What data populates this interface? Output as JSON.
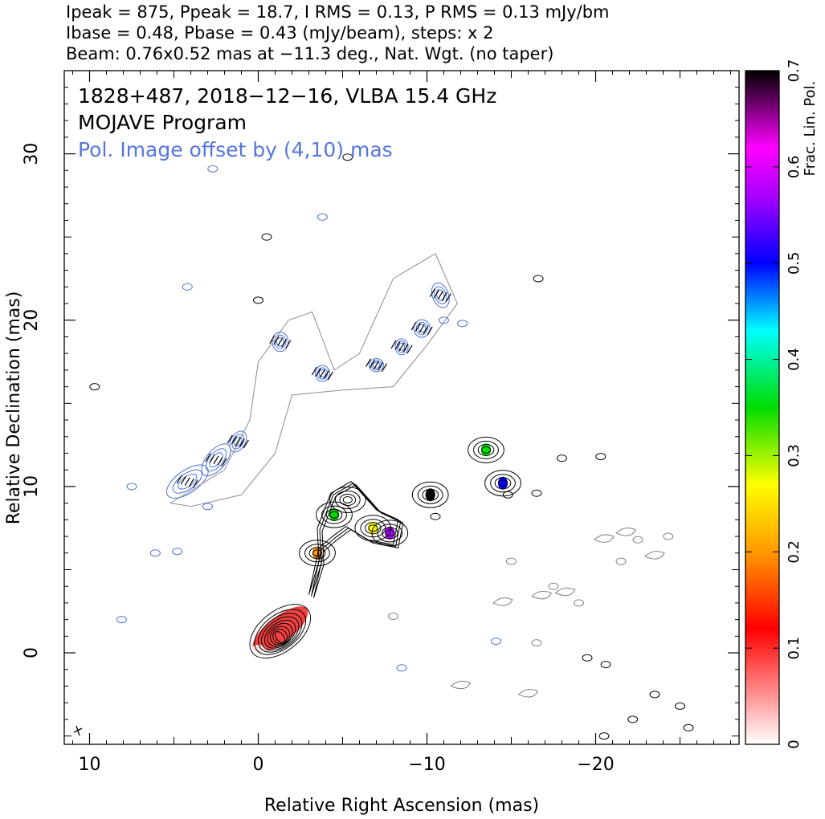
{
  "header": {
    "line1": "Ipeak = 875, Ppeak = 18.7, I RMS = 0.13, P RMS = 0.13 mJy/bm",
    "line2": "Ibase = 0.48, Pbase = 0.43 (mJy/beam), steps: x 2",
    "line3": "Beam: 0.76x0.52 mas at −11.3 deg., Nat. Wgt. (no taper)"
  },
  "annotations": {
    "source": "1828+487, 2018−12−16, VLBA 15.4 GHz",
    "program": "MOJAVE Program",
    "offset_note": "Pol. Image offset by (4,10) mas"
  },
  "colors": {
    "total_intensity_contour": "#000000",
    "polarization_contour": "#4a6fd8",
    "negative_contour": "#808080",
    "evpa_tick": "#000000",
    "offset_note": "#5577dd"
  },
  "chart_data": {
    "type": "heatmap",
    "xlabel": "Relative Right Ascension (mas)",
    "ylabel": "Relative Declination (mas)",
    "xlim": [
      11.5,
      -28.5
    ],
    "ylim": [
      -5.5,
      35
    ],
    "xticks": [
      10,
      0,
      -10,
      -20
    ],
    "xtick_labels": [
      "10",
      "0",
      "−10",
      "−20"
    ],
    "yticks": [
      0,
      10,
      20,
      30
    ],
    "ytick_labels": [
      "0",
      "10",
      "20",
      "30"
    ],
    "colorbar": {
      "label": "Frac. Lin. Pol.",
      "range": [
        0,
        0.7
      ],
      "ticks": [
        0,
        0.1,
        0.2,
        0.3,
        0.4,
        0.5,
        0.6,
        0.7
      ],
      "tick_labels": [
        "0",
        "0.1",
        "0.2",
        "0.3",
        "0.4",
        "0.5",
        "0.6",
        "0.7"
      ],
      "stops": [
        {
          "v": 0.0,
          "color": "#ffffff"
        },
        {
          "v": 0.12,
          "color": "#ff0000"
        },
        {
          "v": 0.2,
          "color": "#ff9900"
        },
        {
          "v": 0.27,
          "color": "#ffff00"
        },
        {
          "v": 0.35,
          "color": "#00dd00"
        },
        {
          "v": 0.43,
          "color": "#00ffff"
        },
        {
          "v": 0.5,
          "color": "#0000ff"
        },
        {
          "v": 0.57,
          "color": "#aa00ff"
        },
        {
          "v": 0.62,
          "color": "#ff00ff"
        },
        {
          "v": 0.7,
          "color": "#000000"
        }
      ]
    },
    "total_intensity": {
      "core_position": [
        0,
        0
      ],
      "jet_components": [
        {
          "x": 0,
          "y": 0,
          "frac_pol": 0.1
        },
        {
          "x": -2.5,
          "y": 2.5,
          "frac_pol": 0.1
        },
        {
          "x": -3.5,
          "y": 6,
          "frac_pol": 0.25
        },
        {
          "x": -5.3,
          "y": 9.2,
          "frac_pol": 0.1
        },
        {
          "x": -4.5,
          "y": 8.3,
          "frac_pol": 0.35
        },
        {
          "x": -6.8,
          "y": 7.5,
          "frac_pol": 0.3
        },
        {
          "x": -7.8,
          "y": 7.2,
          "frac_pol": 0.6
        },
        {
          "x": -10.2,
          "y": 9.5,
          "frac_pol": 0.7
        },
        {
          "x": -13.5,
          "y": 12.2,
          "frac_pol": 0.35
        },
        {
          "x": -14.5,
          "y": 10.2,
          "frac_pol": 0.5
        }
      ]
    },
    "polarized_intensity_offset": [
      4,
      10
    ]
  }
}
